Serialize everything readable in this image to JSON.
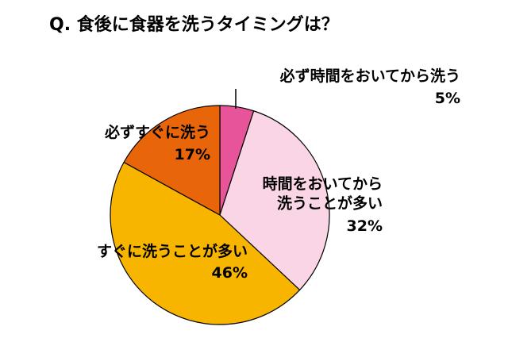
{
  "chart_data": {
    "type": "pie",
    "title": "Q. 食後に食器を洗うタイミングは？",
    "categories": [
      "必ず時間をおいてから洗う",
      "時間をおいてから\n洗うことが多い",
      "すぐに洗うことが多い",
      "必ずすぐに洗う"
    ],
    "values": [
      5,
      32,
      46,
      17
    ],
    "value_labels": [
      "5%",
      "32%",
      "46%",
      "17%"
    ],
    "colors": [
      "#e8549a",
      "#f9d5e5",
      "#f7b500",
      "#e8650a"
    ]
  }
}
